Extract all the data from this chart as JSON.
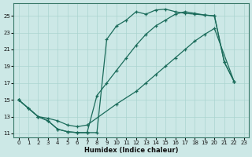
{
  "xlabel": "Humidex (Indice chaleur)",
  "bg_color": "#cce8e6",
  "line_color": "#1a6b5a",
  "grid_color": "#aad4d0",
  "xlim_min": -0.5,
  "xlim_max": 23.5,
  "ylim_min": 10.5,
  "ylim_max": 26.5,
  "xticks": [
    0,
    1,
    2,
    3,
    4,
    5,
    6,
    7,
    8,
    9,
    10,
    11,
    12,
    13,
    14,
    15,
    16,
    17,
    18,
    19,
    20,
    21,
    22,
    23
  ],
  "yticks": [
    11,
    13,
    15,
    17,
    19,
    21,
    23,
    25
  ],
  "line1_x": [
    0,
    1,
    2,
    3,
    4,
    5,
    6,
    7,
    8,
    9,
    10,
    11,
    12,
    13,
    14,
    15,
    16,
    17,
    18,
    19,
    20,
    21,
    22
  ],
  "line1_y": [
    15,
    14,
    13,
    12.5,
    11.5,
    11.2,
    11.1,
    11.1,
    11.1,
    22.2,
    23.8,
    24.5,
    25.5,
    25.2,
    25.7,
    25.8,
    25.5,
    25.3,
    25.2,
    25.1,
    25.0,
    19.5,
    17.2
  ],
  "line2_x": [
    0,
    1,
    2,
    3,
    4,
    5,
    6,
    7,
    8,
    9,
    10,
    11,
    12,
    13,
    14,
    15,
    16,
    17,
    18,
    19,
    20,
    21,
    22
  ],
  "line2_y": [
    15,
    14,
    13,
    12.5,
    11.5,
    11.2,
    11.1,
    11.1,
    15.5,
    17.0,
    18.5,
    20.0,
    21.5,
    22.8,
    23.8,
    24.5,
    25.2,
    25.5,
    25.3,
    25.1,
    25.0,
    19.5,
    17.2
  ],
  "line3_x": [
    0,
    2,
    3,
    4,
    5,
    6,
    7,
    10,
    12,
    13,
    14,
    15,
    16,
    17,
    18,
    19,
    20,
    22
  ],
  "line3_y": [
    15,
    13,
    12.8,
    12.5,
    12.0,
    11.8,
    12.0,
    14.5,
    16.0,
    17.0,
    18.0,
    19.0,
    20.0,
    21.0,
    22.0,
    22.8,
    23.5,
    17.2
  ]
}
